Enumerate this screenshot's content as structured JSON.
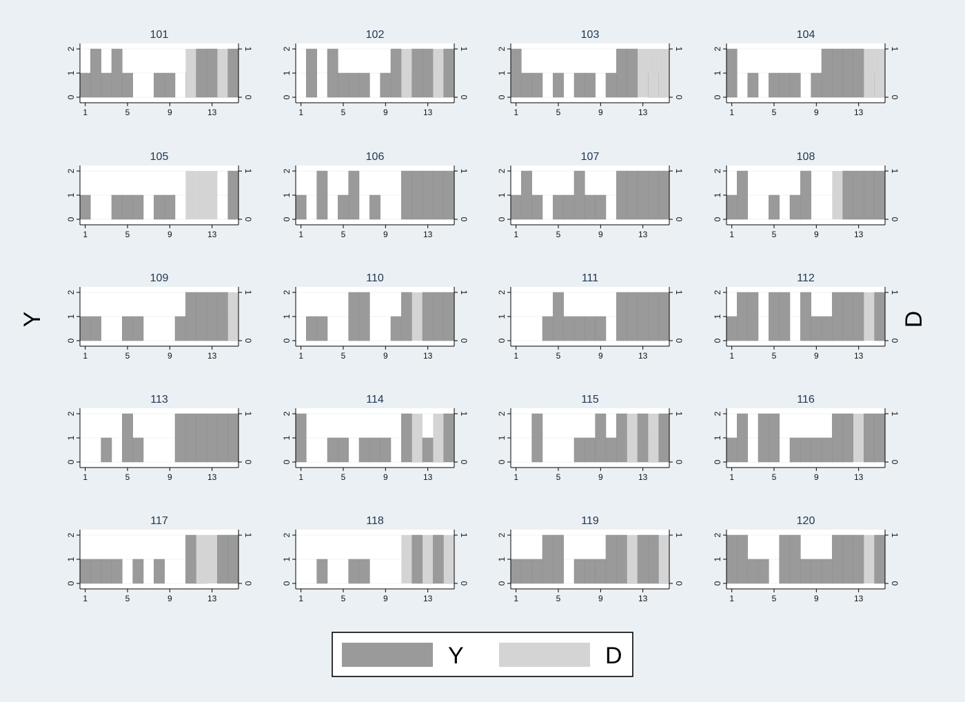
{
  "chart_data": {
    "type": "bar",
    "layout": "small-multiples",
    "grid": true,
    "legend_placement": "bottom-center",
    "y_axis_title": "Y",
    "y2_axis_title": "D",
    "x_ticks": [
      "1",
      "5",
      "9",
      "13"
    ],
    "y_ticks": [
      "0",
      "1",
      "2"
    ],
    "y2_ticks": [
      "0",
      "1"
    ],
    "xlim": [
      0.5,
      15.5
    ],
    "ylim": [
      0,
      2
    ],
    "y2lim": [
      0,
      1
    ],
    "legend": [
      {
        "key": "Y",
        "label": "Y",
        "color": "#9a9a9a"
      },
      {
        "key": "D",
        "label": "D",
        "color": "#d4d4d4"
      }
    ],
    "x": [
      1,
      2,
      3,
      4,
      5,
      6,
      7,
      8,
      9,
      10,
      11,
      12,
      13,
      14,
      15
    ],
    "panels": [
      {
        "title": "101",
        "Y": [
          1,
          2,
          1,
          2,
          1,
          0,
          0,
          1,
          1,
          0,
          1,
          2,
          2,
          1,
          2
        ],
        "D": [
          0,
          0,
          0,
          0,
          0,
          0,
          0,
          0,
          0,
          0,
          1,
          0,
          0,
          1,
          0
        ]
      },
      {
        "title": "102",
        "Y": [
          0,
          2,
          0,
          2,
          1,
          1,
          1,
          0,
          1,
          2,
          1,
          2,
          2,
          1,
          2
        ],
        "D": [
          0,
          0,
          0,
          0,
          0,
          0,
          0,
          0,
          0,
          0,
          1,
          0,
          0,
          1,
          0
        ]
      },
      {
        "title": "103",
        "Y": [
          2,
          1,
          1,
          0,
          1,
          0,
          1,
          1,
          0,
          1,
          2,
          2,
          0,
          1,
          1
        ],
        "D": [
          0,
          0,
          0,
          0,
          0,
          0,
          0,
          0,
          0,
          0,
          0,
          0,
          1,
          1,
          1
        ]
      },
      {
        "title": "104",
        "Y": [
          2,
          0,
          1,
          0,
          1,
          1,
          1,
          0,
          1,
          2,
          2,
          2,
          2,
          1,
          1
        ],
        "D": [
          0,
          0,
          0,
          0,
          0,
          0,
          0,
          0,
          0,
          0,
          0,
          0,
          0,
          1,
          1
        ]
      },
      {
        "title": "105",
        "Y": [
          1,
          0,
          0,
          1,
          1,
          1,
          0,
          1,
          1,
          0,
          0,
          0,
          0,
          0,
          2
        ],
        "D": [
          0,
          0,
          0,
          0,
          0,
          0,
          0,
          0,
          0,
          0,
          1,
          1,
          1,
          0,
          0
        ]
      },
      {
        "title": "106",
        "Y": [
          1,
          0,
          2,
          0,
          1,
          2,
          0,
          1,
          0,
          0,
          2,
          2,
          2,
          2,
          2
        ],
        "D": [
          0,
          0,
          0,
          0,
          0,
          0,
          0,
          0,
          0,
          0,
          0,
          0,
          0,
          0,
          0
        ]
      },
      {
        "title": "107",
        "Y": [
          1,
          2,
          1,
          0,
          1,
          1,
          2,
          1,
          1,
          0,
          2,
          2,
          2,
          2,
          2
        ],
        "D": [
          0,
          0,
          0,
          0,
          0,
          0,
          0,
          0,
          0,
          0,
          0,
          0,
          0,
          0,
          0
        ]
      },
      {
        "title": "108",
        "Y": [
          1,
          2,
          0,
          0,
          1,
          0,
          1,
          2,
          0,
          0,
          0,
          2,
          2,
          2,
          2
        ],
        "D": [
          0,
          0,
          0,
          0,
          0,
          0,
          0,
          0,
          0,
          0,
          1,
          0,
          0,
          0,
          0
        ]
      },
      {
        "title": "109",
        "Y": [
          1,
          1,
          0,
          0,
          1,
          1,
          0,
          0,
          0,
          1,
          2,
          2,
          2,
          2,
          1
        ],
        "D": [
          0,
          0,
          0,
          0,
          0,
          0,
          0,
          0,
          0,
          0,
          0,
          0,
          0,
          0,
          1
        ]
      },
      {
        "title": "110",
        "Y": [
          0,
          1,
          1,
          0,
          0,
          2,
          2,
          0,
          0,
          1,
          2,
          0,
          2,
          2,
          2
        ],
        "D": [
          0,
          0,
          0,
          0,
          0,
          0,
          0,
          0,
          0,
          0,
          0,
          1,
          0,
          0,
          0
        ]
      },
      {
        "title": "111",
        "Y": [
          0,
          0,
          0,
          1,
          2,
          1,
          1,
          1,
          1,
          0,
          2,
          2,
          2,
          2,
          2
        ],
        "D": [
          0,
          0,
          0,
          0,
          0,
          0,
          0,
          0,
          0,
          0,
          0,
          0,
          0,
          0,
          0
        ]
      },
      {
        "title": "112",
        "Y": [
          1,
          2,
          2,
          0,
          2,
          2,
          0,
          2,
          1,
          1,
          2,
          2,
          2,
          0,
          2
        ],
        "D": [
          0,
          0,
          0,
          0,
          0,
          0,
          0,
          0,
          0,
          0,
          0,
          0,
          0,
          1,
          0
        ]
      },
      {
        "title": "113",
        "Y": [
          0,
          0,
          1,
          0,
          2,
          1,
          0,
          0,
          0,
          2,
          2,
          2,
          2,
          2,
          2
        ],
        "D": [
          0,
          0,
          0,
          0,
          0,
          0,
          0,
          0,
          0,
          0,
          0,
          0,
          0,
          0,
          0
        ]
      },
      {
        "title": "114",
        "Y": [
          2,
          0,
          0,
          1,
          1,
          0,
          1,
          1,
          1,
          0,
          2,
          1,
          1,
          1,
          2
        ],
        "D": [
          0,
          0,
          0,
          0,
          0,
          0,
          0,
          0,
          0,
          0,
          0,
          1,
          0,
          1,
          0
        ]
      },
      {
        "title": "115",
        "Y": [
          0,
          0,
          2,
          0,
          0,
          0,
          1,
          1,
          2,
          1,
          2,
          1,
          2,
          1,
          2
        ],
        "D": [
          0,
          0,
          0,
          0,
          0,
          0,
          0,
          0,
          0,
          0,
          0,
          1,
          0,
          1,
          0
        ]
      },
      {
        "title": "116",
        "Y": [
          1,
          2,
          0,
          2,
          2,
          0,
          1,
          1,
          1,
          1,
          2,
          2,
          0,
          2,
          2
        ],
        "D": [
          0,
          0,
          0,
          0,
          0,
          0,
          0,
          0,
          0,
          0,
          0,
          0,
          1,
          0,
          0
        ]
      },
      {
        "title": "117",
        "Y": [
          1,
          1,
          1,
          1,
          0,
          1,
          0,
          1,
          0,
          0,
          2,
          1,
          0,
          2,
          2
        ],
        "D": [
          0,
          0,
          0,
          0,
          0,
          0,
          0,
          0,
          0,
          0,
          0,
          1,
          1,
          0,
          0
        ]
      },
      {
        "title": "118",
        "Y": [
          0,
          0,
          1,
          0,
          0,
          1,
          1,
          0,
          0,
          0,
          0,
          2,
          1,
          2,
          1
        ],
        "D": [
          0,
          0,
          0,
          0,
          0,
          0,
          0,
          0,
          0,
          0,
          1,
          0,
          1,
          0,
          1
        ]
      },
      {
        "title": "119",
        "Y": [
          1,
          1,
          1,
          2,
          2,
          0,
          1,
          1,
          1,
          2,
          2,
          1,
          2,
          2,
          1
        ],
        "D": [
          0,
          0,
          0,
          0,
          0,
          0,
          0,
          0,
          0,
          0,
          0,
          1,
          0,
          0,
          1
        ]
      },
      {
        "title": "120",
        "Y": [
          2,
          2,
          1,
          1,
          0,
          2,
          2,
          1,
          1,
          1,
          2,
          2,
          2,
          0,
          2
        ],
        "D": [
          0,
          0,
          0,
          0,
          0,
          0,
          0,
          0,
          0,
          0,
          0,
          0,
          0,
          1,
          0
        ]
      }
    ]
  }
}
